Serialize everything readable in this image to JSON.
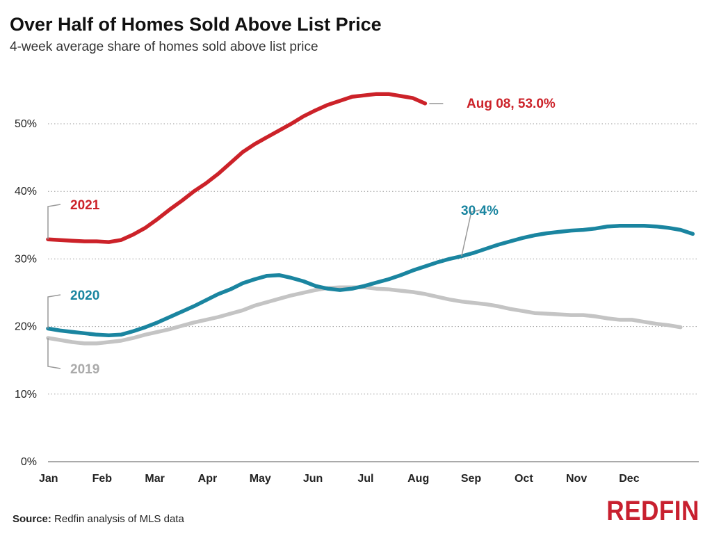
{
  "header": {
    "title": "Over Half of Homes Sold Above List Price",
    "subtitle": "4-week average share of homes sold above list price"
  },
  "footer": {
    "source_label": "Source:",
    "source_text": "Redfin analysis of MLS data",
    "logo": "REDFIN"
  },
  "colors": {
    "2021": "#cc2229",
    "2020": "#1a85a0",
    "2019": "#c4c4c4",
    "grid": "#9a9a9a",
    "axis": "#555555"
  },
  "chart_data": {
    "type": "line",
    "title": "Over Half of Homes Sold Above List Price",
    "subtitle": "4-week average share of homes sold above list price",
    "xlabel": "",
    "ylabel": "",
    "x_ticks": [
      "Jan",
      "Feb",
      "Mar",
      "Apr",
      "May",
      "Jun",
      "Jul",
      "Aug",
      "Sep",
      "Oct",
      "Nov",
      "Dec"
    ],
    "y_ticks": [
      "0%",
      "10%",
      "20%",
      "30%",
      "40%",
      "50%"
    ],
    "ylim": [
      0,
      50
    ],
    "grid": true,
    "x_unit": "week of year",
    "series": [
      {
        "name": "2019",
        "label": "2019",
        "points": [
          [
            0,
            18.3
          ],
          [
            1,
            18.0
          ],
          [
            2,
            17.7
          ],
          [
            3,
            17.5
          ],
          [
            4,
            17.5
          ],
          [
            5,
            17.7
          ],
          [
            6,
            17.9
          ],
          [
            7,
            18.3
          ],
          [
            8,
            18.8
          ],
          [
            9,
            19.2
          ],
          [
            10,
            19.6
          ],
          [
            11,
            20.1
          ],
          [
            12,
            20.6
          ],
          [
            13,
            21.0
          ],
          [
            14,
            21.4
          ],
          [
            15,
            21.9
          ],
          [
            16,
            22.4
          ],
          [
            17,
            23.1
          ],
          [
            18,
            23.6
          ],
          [
            19,
            24.1
          ],
          [
            20,
            24.6
          ],
          [
            21,
            25.0
          ],
          [
            22,
            25.4
          ],
          [
            23,
            25.7
          ],
          [
            24,
            25.8
          ],
          [
            25,
            25.8
          ],
          [
            26,
            25.8
          ],
          [
            27,
            25.6
          ],
          [
            28,
            25.5
          ],
          [
            29,
            25.3
          ],
          [
            30,
            25.1
          ],
          [
            31,
            24.8
          ],
          [
            32,
            24.4
          ],
          [
            33,
            24.0
          ],
          [
            34,
            23.7
          ],
          [
            35,
            23.5
          ],
          [
            36,
            23.3
          ],
          [
            37,
            23.0
          ],
          [
            38,
            22.6
          ],
          [
            39,
            22.3
          ],
          [
            40,
            22.0
          ],
          [
            41,
            21.9
          ],
          [
            42,
            21.8
          ],
          [
            43,
            21.7
          ],
          [
            44,
            21.7
          ],
          [
            45,
            21.5
          ],
          [
            46,
            21.2
          ],
          [
            47,
            21.0
          ],
          [
            48,
            21.0
          ],
          [
            49,
            20.7
          ],
          [
            50,
            20.4
          ],
          [
            51,
            20.2
          ],
          [
            52,
            19.9
          ]
        ]
      },
      {
        "name": "2020",
        "label": "2020",
        "end_label": "30.4%",
        "points": [
          [
            0,
            19.7
          ],
          [
            1,
            19.4
          ],
          [
            2,
            19.2
          ],
          [
            3,
            19.0
          ],
          [
            4,
            18.8
          ],
          [
            5,
            18.7
          ],
          [
            6,
            18.8
          ],
          [
            7,
            19.3
          ],
          [
            8,
            19.9
          ],
          [
            9,
            20.6
          ],
          [
            10,
            21.4
          ],
          [
            11,
            22.2
          ],
          [
            12,
            23.0
          ],
          [
            13,
            23.9
          ],
          [
            14,
            24.8
          ],
          [
            15,
            25.5
          ],
          [
            16,
            26.4
          ],
          [
            17,
            27.0
          ],
          [
            18,
            27.5
          ],
          [
            19,
            27.6
          ],
          [
            20,
            27.2
          ],
          [
            21,
            26.7
          ],
          [
            22,
            26.0
          ],
          [
            23,
            25.6
          ],
          [
            24,
            25.4
          ],
          [
            25,
            25.6
          ],
          [
            26,
            26.0
          ],
          [
            27,
            26.5
          ],
          [
            28,
            27.0
          ],
          [
            29,
            27.6
          ],
          [
            30,
            28.3
          ],
          [
            31,
            28.9
          ],
          [
            32,
            29.5
          ],
          [
            33,
            30.0
          ],
          [
            34,
            30.4
          ],
          [
            35,
            30.9
          ],
          [
            36,
            31.5
          ],
          [
            37,
            32.1
          ],
          [
            38,
            32.6
          ],
          [
            39,
            33.1
          ],
          [
            40,
            33.5
          ],
          [
            41,
            33.8
          ],
          [
            42,
            34.0
          ],
          [
            43,
            34.2
          ],
          [
            44,
            34.3
          ],
          [
            45,
            34.5
          ],
          [
            46,
            34.8
          ],
          [
            47,
            34.9
          ],
          [
            48,
            34.9
          ],
          [
            49,
            34.9
          ],
          [
            50,
            34.8
          ],
          [
            51,
            34.6
          ],
          [
            52,
            34.3
          ],
          [
            53,
            33.7
          ]
        ]
      },
      {
        "name": "2021",
        "label": "2021",
        "end_label": "Aug 08, 53.0%",
        "points": [
          [
            0,
            32.9
          ],
          [
            1,
            32.8
          ],
          [
            2,
            32.7
          ],
          [
            3,
            32.6
          ],
          [
            4,
            32.6
          ],
          [
            5,
            32.5
          ],
          [
            6,
            32.8
          ],
          [
            7,
            33.6
          ],
          [
            8,
            34.6
          ],
          [
            9,
            35.9
          ],
          [
            10,
            37.3
          ],
          [
            11,
            38.6
          ],
          [
            12,
            40.0
          ],
          [
            13,
            41.2
          ],
          [
            14,
            42.6
          ],
          [
            15,
            44.2
          ],
          [
            16,
            45.8
          ],
          [
            17,
            47.0
          ],
          [
            18,
            48.0
          ],
          [
            19,
            49.0
          ],
          [
            20,
            50.0
          ],
          [
            21,
            51.1
          ],
          [
            22,
            52.0
          ],
          [
            23,
            52.8
          ],
          [
            24,
            53.4
          ],
          [
            25,
            54.0
          ],
          [
            26,
            54.2
          ],
          [
            27,
            54.4
          ],
          [
            28,
            54.4
          ],
          [
            29,
            54.1
          ],
          [
            30,
            53.8
          ],
          [
            31,
            53.0
          ]
        ]
      }
    ]
  }
}
